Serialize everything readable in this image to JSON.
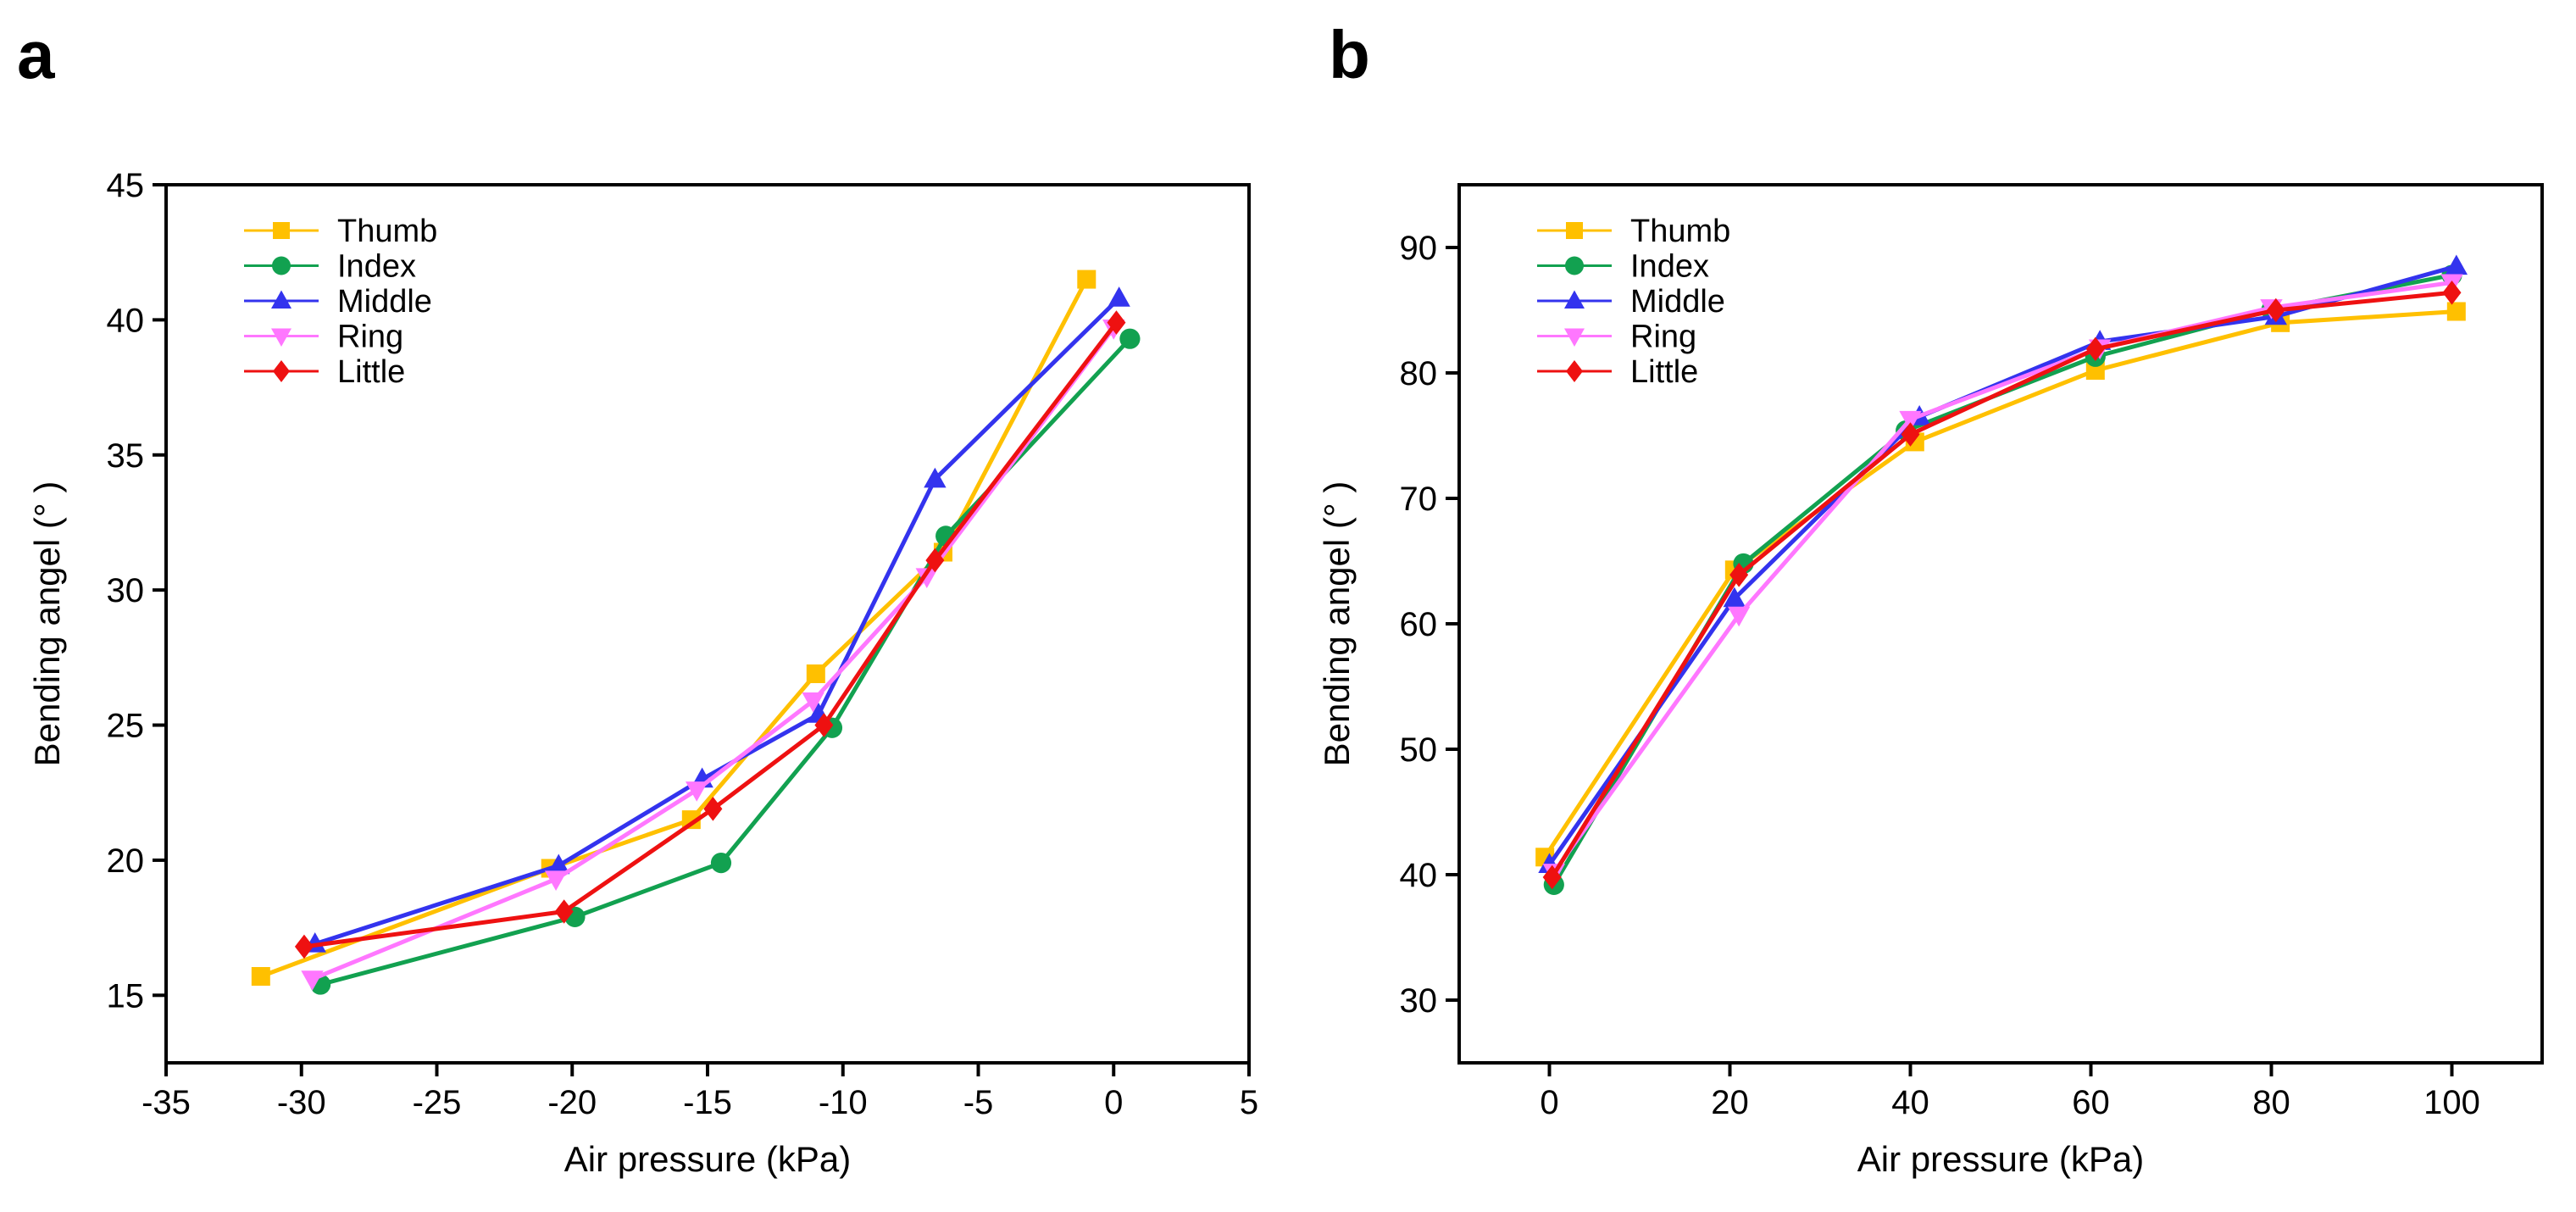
{
  "chart_data": [
    {
      "panel": "a",
      "type": "line",
      "title": "",
      "xlabel": "Air pressure (kPa)",
      "ylabel": "Bending angel (°  )",
      "xlim": [
        -35,
        5
      ],
      "ylim": [
        12.5,
        45
      ],
      "xticks": [
        -35,
        -30,
        -25,
        -20,
        -15,
        -10,
        -5,
        0,
        5
      ],
      "yticks": [
        15,
        20,
        25,
        30,
        35,
        40,
        45
      ],
      "grid": false,
      "legend": "top-left",
      "series": [
        {
          "name": "Thumb",
          "color": "#FFC000",
          "marker": "square",
          "x": [
            -31.5,
            -20.8,
            -15.6,
            -11.0,
            -6.3,
            -1.0
          ],
          "y": [
            15.7,
            19.7,
            21.5,
            26.9,
            31.4,
            41.5
          ]
        },
        {
          "name": "Index",
          "color": "#12A150",
          "marker": "circle",
          "x": [
            -29.3,
            -19.9,
            -14.5,
            -10.4,
            -6.2,
            0.6
          ],
          "y": [
            15.4,
            17.9,
            19.9,
            24.9,
            32.0,
            39.3
          ]
        },
        {
          "name": "Middle",
          "color": "#3333EE",
          "marker": "triangle-up",
          "x": [
            -29.5,
            -20.5,
            -15.2,
            -10.9,
            -6.6,
            0.2
          ],
          "y": [
            16.9,
            19.8,
            23.0,
            25.4,
            34.1,
            40.8
          ]
        },
        {
          "name": "Ring",
          "color": "#FF77FF",
          "marker": "triangle-down",
          "x": [
            -29.6,
            -20.6,
            -15.4,
            -11.1,
            -6.9,
            0.0
          ],
          "y": [
            15.6,
            19.3,
            22.6,
            25.9,
            30.5,
            39.7
          ]
        },
        {
          "name": "Little",
          "color": "#EE1111",
          "marker": "diamond",
          "x": [
            -29.9,
            -20.3,
            -14.8,
            -10.7,
            -6.6,
            0.1
          ],
          "y": [
            16.8,
            18.1,
            21.9,
            25.0,
            31.1,
            39.9
          ]
        }
      ]
    },
    {
      "panel": "b",
      "type": "line",
      "title": "",
      "xlabel": "Air pressure (kPa)",
      "ylabel": "Bending angel (°  )",
      "xlim": [
        -10,
        110
      ],
      "ylim": [
        25,
        95
      ],
      "xticks": [
        0,
        20,
        40,
        60,
        80,
        100
      ],
      "yticks": [
        30,
        40,
        50,
        60,
        70,
        80,
        90
      ],
      "grid": false,
      "legend": "top-left",
      "series": [
        {
          "name": "Thumb",
          "color": "#FFC000",
          "marker": "square",
          "x": [
            -0.5,
            20.5,
            40.5,
            60.5,
            81.0,
            100.5
          ],
          "y": [
            41.4,
            64.3,
            74.5,
            80.2,
            84.0,
            84.9
          ]
        },
        {
          "name": "Index",
          "color": "#12A150",
          "marker": "circle",
          "x": [
            0.5,
            21.5,
            39.5,
            60.5,
            80.0,
            100.0
          ],
          "y": [
            39.2,
            64.8,
            75.4,
            81.3,
            85.0,
            87.8
          ]
        },
        {
          "name": "Middle",
          "color": "#3333EE",
          "marker": "triangle-up",
          "x": [
            0.0,
            20.5,
            41.0,
            61.0,
            80.5,
            100.5
          ],
          "y": [
            40.8,
            62.0,
            76.5,
            82.5,
            84.5,
            88.5
          ]
        },
        {
          "name": "Ring",
          "color": "#FF77FF",
          "marker": "triangle-down",
          "x": [
            0.5,
            21.0,
            40.0,
            61.0,
            80.0,
            100.0
          ],
          "y": [
            40.2,
            60.7,
            76.3,
            82.0,
            85.2,
            87.2
          ]
        },
        {
          "name": "Little",
          "color": "#EE1111",
          "marker": "diamond",
          "x": [
            0.3,
            21.0,
            40.0,
            60.5,
            80.5,
            100.0
          ],
          "y": [
            39.8,
            63.9,
            75.1,
            81.9,
            85.0,
            86.4
          ]
        }
      ]
    }
  ]
}
